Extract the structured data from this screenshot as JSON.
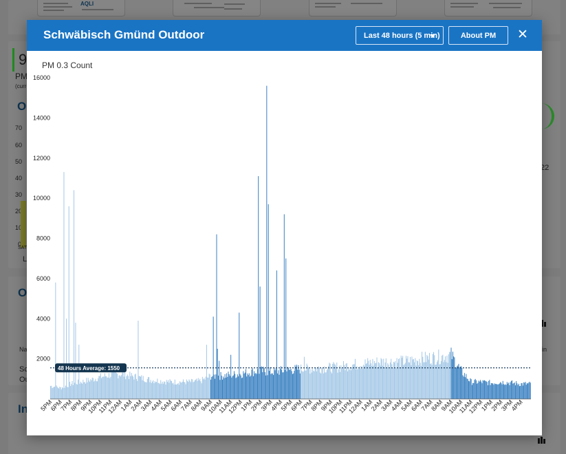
{
  "modal": {
    "title": "Schwäbisch Gmünd Outdoor",
    "range_label": "Last 48 hours (5 min)",
    "about_label": "About PM",
    "close_glyph": "✕"
  },
  "background": {
    "reading_value": "9",
    "reading_unit": "PM",
    "reading_note": "(curre",
    "section_out_1": "Ou",
    "section_out_2": "Ou",
    "section_in": "In",
    "axis_ticks": [
      "70",
      "60",
      "50",
      "40",
      "30",
      "20",
      "10",
      "0"
    ],
    "sat_label": "SAT",
    "l_label": "L",
    "right_number": "22",
    "table_header_left": "Na",
    "table_header_right": "in",
    "row_1": "Sc",
    "row_2": "Ou",
    "thumbnail_brand": "AQLI"
  },
  "colors": {
    "header_blue": "#1a74c4",
    "bar_light": "#a6c9e7",
    "bar_dark": "#3c82c2",
    "avg_line": "#1b3d5c"
  },
  "chart_data": {
    "type": "bar",
    "title": "PM 0.3 Count",
    "xlabel": "",
    "ylabel": "",
    "ylim": [
      0,
      16000
    ],
    "yticks": [
      2000,
      4000,
      6000,
      8000,
      10000,
      12000,
      14000,
      16000
    ],
    "grid": false,
    "legend": "none",
    "average": {
      "value": 1550,
      "label": "48 Hours Average: 1550"
    },
    "x_tick_labels": [
      "5PM",
      "6PM",
      "7PM",
      "8PM",
      "9PM",
      "10PM",
      "11PM",
      "12AM",
      "1AM",
      "2AM",
      "3AM",
      "4AM",
      "5AM",
      "6AM",
      "7AM",
      "8AM",
      "9AM",
      "10AM",
      "11AM",
      "12PM",
      "1PM",
      "2PM",
      "3PM",
      "4PM",
      "5PM",
      "6PM",
      "7PM",
      "8PM",
      "9PM",
      "10PM",
      "11PM",
      "12AM",
      "1AM",
      "2AM",
      "3AM",
      "4AM",
      "5AM",
      "6AM",
      "7AM",
      "8AM",
      "9AM",
      "10AM",
      "11AM",
      "12PM",
      "1PM",
      "2PM",
      "3PM",
      "4PM"
    ],
    "interval_minutes": 5,
    "hourly_base": [
      650,
      550,
      750,
      850,
      950,
      1100,
      1200,
      1250,
      1150,
      1050,
      950,
      900,
      850,
      850,
      850,
      900,
      1150,
      1150,
      1200,
      1250,
      1350,
      1400,
      1350,
      1400,
      1450,
      1500,
      1500,
      1550,
      1550,
      1600,
      1700,
      1750,
      1800,
      1850,
      1850,
      1850,
      1900,
      2000,
      2050,
      2100,
      2200,
      1400,
      850,
      850,
      800,
      850,
      800,
      750
    ],
    "highlighted_hour_ranges": [
      [
        16,
        25
      ],
      [
        40,
        48
      ]
    ],
    "spikes": [
      {
        "time": "9:50AM",
        "value": 1900
      },
      {
        "time": "11:00AM",
        "value": 2200
      },
      {
        "time": "11:50AM",
        "value": 4300
      },
      {
        "time": "1:45PM",
        "value": 11100
      },
      {
        "time": "1:55PM",
        "value": 5600
      },
      {
        "time": "2:35PM",
        "value": 15600
      },
      {
        "time": "2:45PM",
        "value": 9700
      },
      {
        "time": "3:35PM",
        "value": 6400
      },
      {
        "time": "4:20PM",
        "value": 9200
      },
      {
        "time": "4:30PM",
        "value": 7000
      },
      {
        "time": "5:30PM",
        "value": 5800
      },
      {
        "time": "6:20PM",
        "value": 11300
      },
      {
        "time": "6:35PM",
        "value": 4000
      },
      {
        "time": "6:50PM",
        "value": 9600
      },
      {
        "time": "7:20PM",
        "value": 10400
      },
      {
        "time": "7:30PM",
        "value": 3800
      },
      {
        "time": "1:45AM",
        "value": 3900
      },
      {
        "time": "8:35AM",
        "value": 2700
      },
      {
        "time": "9:15AM",
        "value": 4100
      },
      {
        "time": "9:35AM",
        "value": 8200
      },
      {
        "time": "9:40AM",
        "value": 2500
      },
      {
        "time": "7:50PM",
        "value": 2700
      },
      {
        "time": "6:20PM",
        "value": 2100
      }
    ]
  }
}
